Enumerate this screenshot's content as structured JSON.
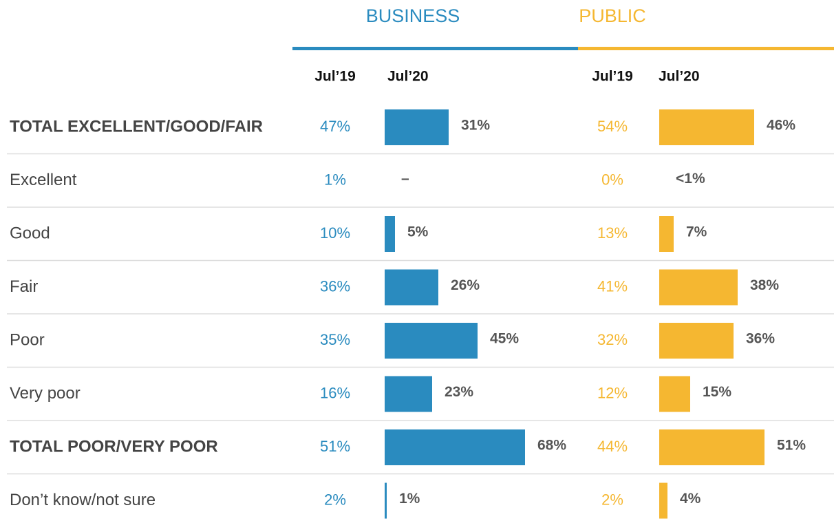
{
  "chart_data": {
    "type": "bar",
    "categories": [
      "TOTAL EXCELLENT/GOOD/FAIR",
      "Excellent",
      "Good",
      "Fair",
      "Poor",
      "Very poor",
      "TOTAL POOR/VERY POOR",
      "Don’t know/not sure"
    ],
    "emphasis": [
      0,
      6
    ],
    "groups": [
      {
        "name": "BUSINESS",
        "color": "#2a8bbf",
        "series": [
          {
            "name": "Jul’19",
            "values": [
              47,
              1,
              10,
              36,
              35,
              16,
              51,
              2
            ],
            "value_labels": [
              "47%",
              "1%",
              "10%",
              "36%",
              "35%",
              "16%",
              "51%",
              "2%"
            ]
          },
          {
            "name": "Jul’20",
            "values": [
              31,
              null,
              5,
              26,
              45,
              23,
              68,
              1
            ],
            "value_labels": [
              "31%",
              "–",
              "5%",
              "26%",
              "45%",
              "23%",
              "68%",
              "1%"
            ]
          }
        ]
      },
      {
        "name": "PUBLIC",
        "color": "#f5b731",
        "series": [
          {
            "name": "Jul’19",
            "values": [
              54,
              0,
              13,
              41,
              32,
              12,
              44,
              2
            ],
            "value_labels": [
              "54%",
              "0%",
              "13%",
              "41%",
              "32%",
              "12%",
              "44%",
              "2%"
            ]
          },
          {
            "name": "Jul’20",
            "values": [
              46,
              null,
              7,
              38,
              36,
              15,
              51,
              4
            ],
            "value_labels": [
              "46%",
              "<1%",
              "7%",
              "38%",
              "36%",
              "15%",
              "51%",
              "4%"
            ]
          }
        ]
      }
    ]
  }
}
